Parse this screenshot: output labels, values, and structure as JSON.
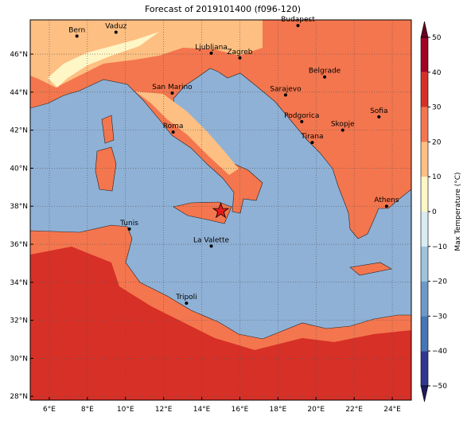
{
  "map": {
    "title": "Forecast of 2019101400 (f096-120)",
    "xlim": [
      5,
      25
    ],
    "ylim": [
      27.8,
      47.8
    ],
    "xticks": [
      {
        "value": 6,
        "label": "6°E"
      },
      {
        "value": 8,
        "label": "8°E"
      },
      {
        "value": 10,
        "label": "10°E"
      },
      {
        "value": 12,
        "label": "12°E"
      },
      {
        "value": 14,
        "label": "14°E"
      },
      {
        "value": 16,
        "label": "16°E"
      },
      {
        "value": 18,
        "label": "18°E"
      },
      {
        "value": 20,
        "label": "20°E"
      },
      {
        "value": 22,
        "label": "22°E"
      },
      {
        "value": 24,
        "label": "24°E"
      }
    ],
    "yticks": [
      {
        "value": 28,
        "label": "28°N"
      },
      {
        "value": 30,
        "label": "30°N"
      },
      {
        "value": 32,
        "label": "32°N"
      },
      {
        "value": 34,
        "label": "34°N"
      },
      {
        "value": 36,
        "label": "36°N"
      },
      {
        "value": 38,
        "label": "38°N"
      },
      {
        "value": 40,
        "label": "40°N"
      },
      {
        "value": 42,
        "label": "42°N"
      },
      {
        "value": 44,
        "label": "44°N"
      },
      {
        "value": 46,
        "label": "46°N"
      }
    ],
    "grid": true,
    "cities": [
      {
        "name": "Bern",
        "lon": 7.45,
        "lat": 46.95
      },
      {
        "name": "Vaduz",
        "lon": 9.5,
        "lat": 47.15
      },
      {
        "name": "Budapest",
        "lon": 19.05,
        "lat": 47.5
      },
      {
        "name": "Ljubljana",
        "lon": 14.5,
        "lat": 46.05
      },
      {
        "name": "Zagreb",
        "lon": 16.0,
        "lat": 45.8
      },
      {
        "name": "Belgrade",
        "lon": 20.45,
        "lat": 44.8
      },
      {
        "name": "San Marino",
        "lon": 12.45,
        "lat": 43.95
      },
      {
        "name": "Sarajevo",
        "lon": 18.4,
        "lat": 43.85
      },
      {
        "name": "Sofia",
        "lon": 23.3,
        "lat": 42.7
      },
      {
        "name": "Podgorica",
        "lon": 19.25,
        "lat": 42.45
      },
      {
        "name": "Skopje",
        "lon": 21.4,
        "lat": 42.0
      },
      {
        "name": "Roma",
        "lon": 12.5,
        "lat": 41.9
      },
      {
        "name": "Tirana",
        "lon": 19.8,
        "lat": 41.35
      },
      {
        "name": "Athens",
        "lon": 23.7,
        "lat": 38.0
      },
      {
        "name": "Tunis",
        "lon": 10.2,
        "lat": 36.8
      },
      {
        "name": "La Valette",
        "lon": 14.5,
        "lat": 35.9
      },
      {
        "name": "Tripoli",
        "lon": 13.2,
        "lat": 32.9
      }
    ],
    "marker": {
      "lon": 15.0,
      "lat": 37.75,
      "color": "#e41a1c"
    },
    "colorbar": {
      "label": "Max Temperature (°C)",
      "lim": [
        -50,
        50
      ],
      "ticks": [
        {
          "value": -50,
          "label": "−50"
        },
        {
          "value": -40,
          "label": "−40"
        },
        {
          "value": -30,
          "label": "−30"
        },
        {
          "value": -20,
          "label": "−20"
        },
        {
          "value": -10,
          "label": "−10"
        },
        0,
        10,
        20,
        30,
        40,
        50
      ],
      "colors": [
        "#313695",
        "#4575b4",
        "#6e98c8",
        "#9dc3dd",
        "#d8ecf2",
        "#fff6c6",
        "#fdbf82",
        "#f4764e",
        "#d73027",
        "#a50026"
      ],
      "under": "#1f1a5e",
      "over": "#67001f"
    }
  }
}
